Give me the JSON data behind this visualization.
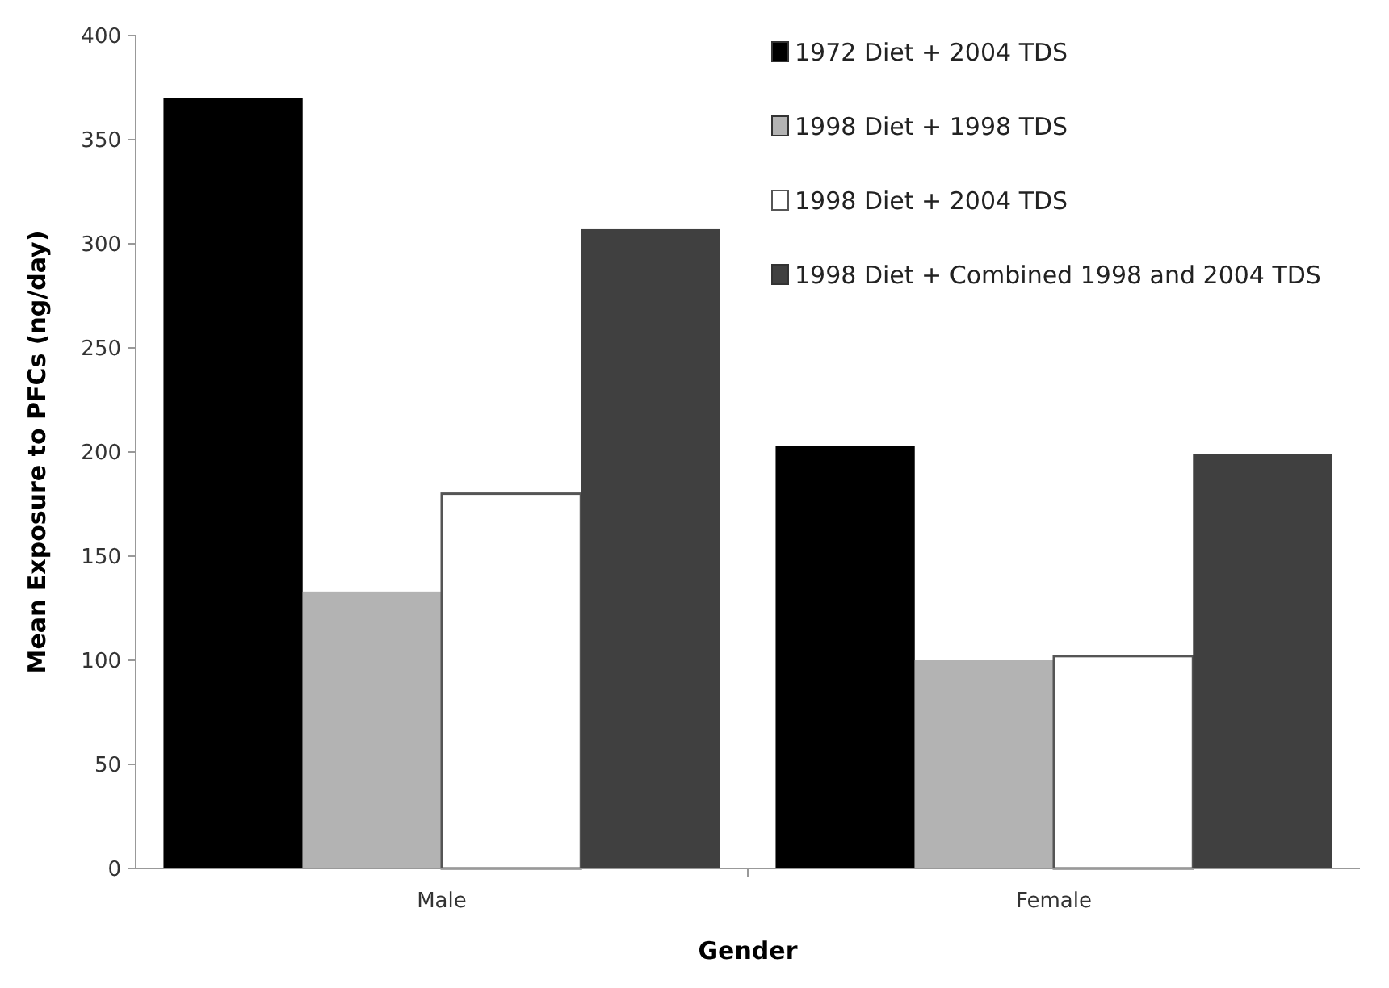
{
  "chart_data": {
    "type": "bar",
    "xlabel": "Gender",
    "ylabel": "Mean Exposure to PFCs (ng/day)",
    "categories": [
      "Male",
      "Female"
    ],
    "series": [
      {
        "name": "1972 Diet + 2004 TDS",
        "color": "#000000",
        "values": [
          370,
          203
        ]
      },
      {
        "name": "1998 Diet + 1998 TDS",
        "color": "#b3b3b3",
        "values": [
          133,
          100
        ]
      },
      {
        "name": "1998 Diet + 2004 TDS",
        "color": "#ffffff",
        "values": [
          180,
          102
        ]
      },
      {
        "name": "1998 Diet + Combined 1998 and 2004 TDS",
        "color": "#404040",
        "values": [
          307,
          199
        ]
      }
    ],
    "ylim": [
      0,
      400
    ],
    "yticks": [
      0,
      50,
      100,
      150,
      200,
      250,
      300,
      350,
      400
    ],
    "grid": false,
    "legend": "top right"
  }
}
